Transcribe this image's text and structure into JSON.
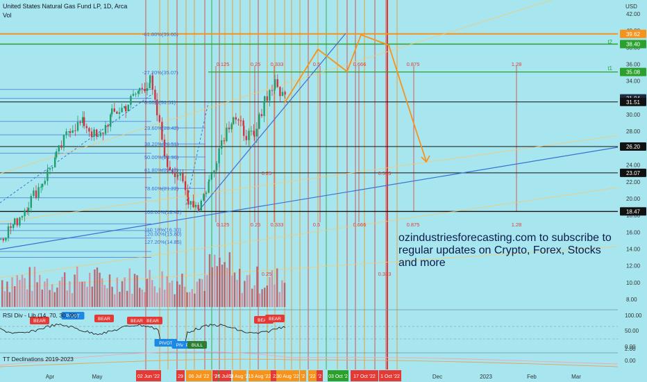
{
  "header": {
    "symbol_title": "United States Natural Gas Fund LP, 1D, Arca",
    "volume_label": "Vol",
    "currency": "USD"
  },
  "promo_text": "ozindustriesforecasting.com to subscribe to regular updates on Crypto, Forex, Stocks and more",
  "price_axis": {
    "ticks": [
      "42.00",
      "40.00",
      "38.00",
      "36.00",
      "34.00",
      "32.00",
      "30.00",
      "28.00",
      "26.00",
      "24.00",
      "22.00",
      "20.00",
      "18.00",
      "16.00",
      "14.00",
      "12.00",
      "10.00",
      "8.00"
    ],
    "tags": [
      {
        "label": "39.62",
        "color": "#f7931a"
      },
      {
        "label": "38.40",
        "color": "#2ca02c"
      },
      {
        "label": "35.08",
        "color": "#2ca02c"
      },
      {
        "label": "31.94",
        "color": "#1f2a44"
      },
      {
        "label": "31.51",
        "color": "#111111"
      },
      {
        "label": "26.20",
        "color": "#111111"
      },
      {
        "label": "23.07",
        "color": "#111111"
      },
      {
        "label": "18.47",
        "color": "#111111"
      }
    ],
    "markers": [
      "t2",
      "t1"
    ]
  },
  "fib_labels": [
    "-61.80%(39.60)",
    "-27.20%(35.07)",
    "0.00%(31.51)",
    "23.60%(28.42)",
    "38.20%(26.51)",
    "50.00%(24.96)",
    "61.80%(23.42)",
    "78.60%(21.22)",
    "100.00%(18.42)",
    "110.18%(16.30)",
    "120.00%(15.80)",
    "127.20%(14.85)"
  ],
  "time_fib_labels": [
    "0.125",
    "0.25",
    "0.333",
    "0.5",
    "0.666",
    "0.875",
    "1.28"
  ],
  "extra_labels": [
    "0.25",
    "0.333"
  ],
  "rsi": {
    "label": "RSI Div - Lib (14, 70, 30, 90)",
    "ticks": [
      "100.00",
      "50.00",
      "0.00"
    ],
    "badges": [
      {
        "text": "BEAR",
        "color": "#e53935"
      },
      {
        "text": "PIVOT",
        "color": "#1e88e5"
      },
      {
        "text": "BEAR",
        "color": "#e53935"
      },
      {
        "text": "BEAR",
        "color": "#e53935"
      },
      {
        "text": "BEAR",
        "color": "#e53935"
      },
      {
        "text": "BEAR",
        "color": "#e53935"
      },
      {
        "text": "BEAR",
        "color": "#e53935"
      },
      {
        "text": "PIVOT",
        "color": "#1e88e5"
      },
      {
        "text": "PIV",
        "color": "#1e88e5"
      },
      {
        "text": "P",
        "color": "#1e88e5"
      },
      {
        "text": "BULL",
        "color": "#2e7d32"
      }
    ]
  },
  "tt": {
    "label": "TT Declinations 2019-2023",
    "ticks": [
      "2.00",
      "0.00"
    ]
  },
  "time_axis": {
    "labels": [
      "Apr",
      "May",
      "Dec",
      "2023",
      "Feb",
      "Mar"
    ],
    "highlights": [
      {
        "text": "02 Jun '22",
        "color": "#e53935"
      },
      {
        "text": "29",
        "color": "#e53935"
      },
      {
        "text": "06 Jul '22",
        "color": "#f7931a"
      },
      {
        "text": "'2",
        "color": "#e53935"
      },
      {
        "text": "'2",
        "color": "#2ca02c"
      },
      {
        "text": "26 Jul '22",
        "color": "#e53935"
      },
      {
        "text": "03 Aug '22",
        "color": "#f7931a"
      },
      {
        "text": "15 Aug '22",
        "color": "#f7931a"
      },
      {
        "text": "22",
        "color": "#e53935"
      },
      {
        "text": "30 Aug '22",
        "color": "#f7931a"
      },
      {
        "text": "'2",
        "color": "#f7931a"
      },
      {
        "text": "'22",
        "color": "#f7931a"
      },
      {
        "text": "'2",
        "color": "#e53935"
      },
      {
        "text": "03 Oct '2",
        "color": "#2ca02c"
      },
      {
        "text": "17 Oct '22",
        "color": "#e53935"
      },
      {
        "text": "1 Oct '22",
        "color": "#e53935"
      }
    ]
  }
}
